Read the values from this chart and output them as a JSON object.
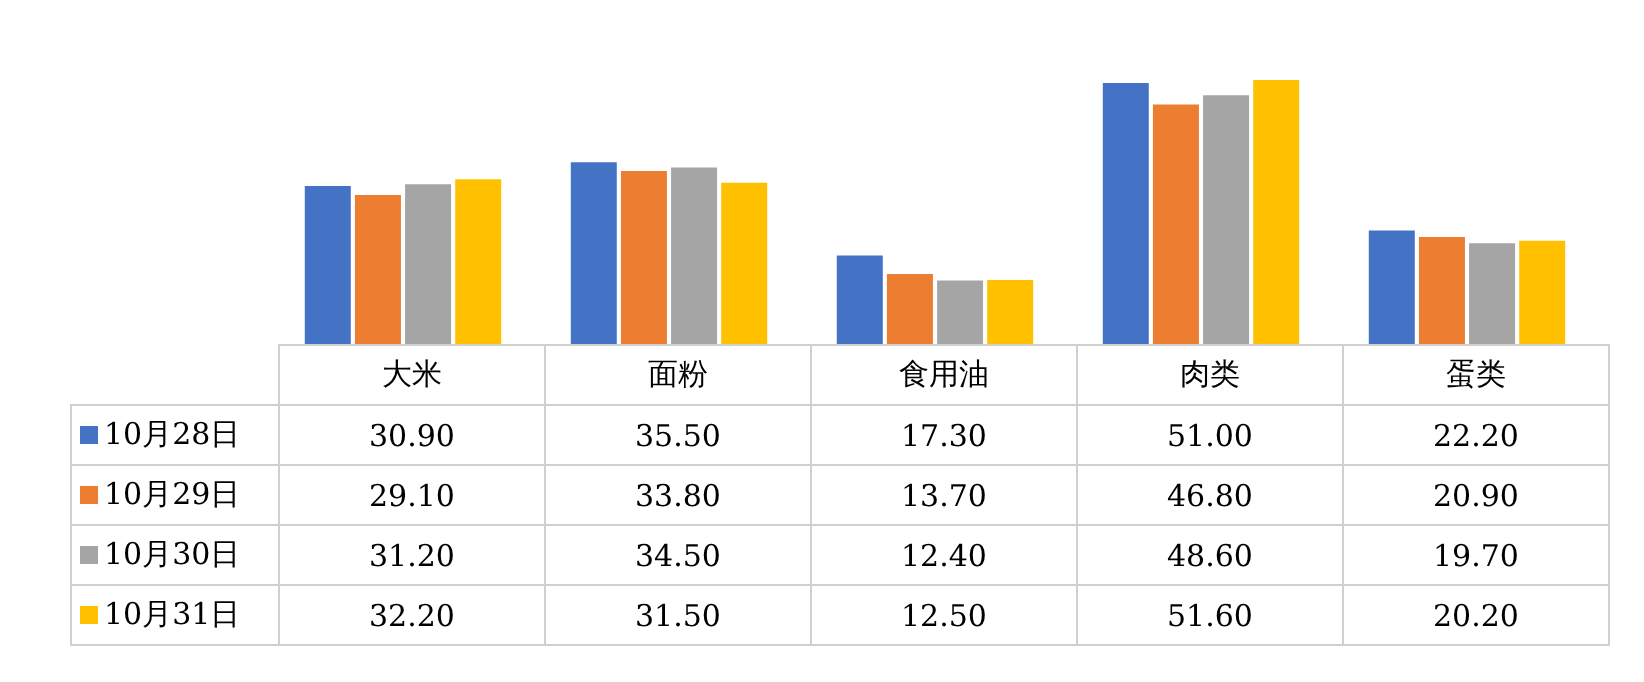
{
  "chart_data": {
    "type": "bar",
    "categories": [
      "大米",
      "面粉",
      "食用油",
      "肉类",
      "蛋类"
    ],
    "series": [
      {
        "name": "10月28日",
        "color": "#4472c4",
        "values": [
          30.9,
          35.5,
          17.3,
          51.0,
          22.2
        ],
        "value_labels": [
          "30.90",
          "35.50",
          "17.30",
          "51.00",
          "22.20"
        ]
      },
      {
        "name": "10月29日",
        "color": "#ed7d31",
        "values": [
          29.1,
          33.8,
          13.7,
          46.8,
          20.9
        ],
        "value_labels": [
          "29.10",
          "33.80",
          "13.70",
          "46.80",
          "20.90"
        ]
      },
      {
        "name": "10月30日",
        "color": "#a5a5a5",
        "values": [
          31.2,
          34.5,
          12.4,
          48.6,
          19.7
        ],
        "value_labels": [
          "31.20",
          "34.50",
          "12.40",
          "48.60",
          "19.70"
        ]
      },
      {
        "name": "10月31日",
        "color": "#ffc000",
        "values": [
          32.2,
          31.5,
          12.5,
          51.6,
          20.2
        ],
        "value_labels": [
          "32.20",
          "31.50",
          "12.50",
          "51.60",
          "20.20"
        ]
      }
    ],
    "legend": "bottom"
  }
}
